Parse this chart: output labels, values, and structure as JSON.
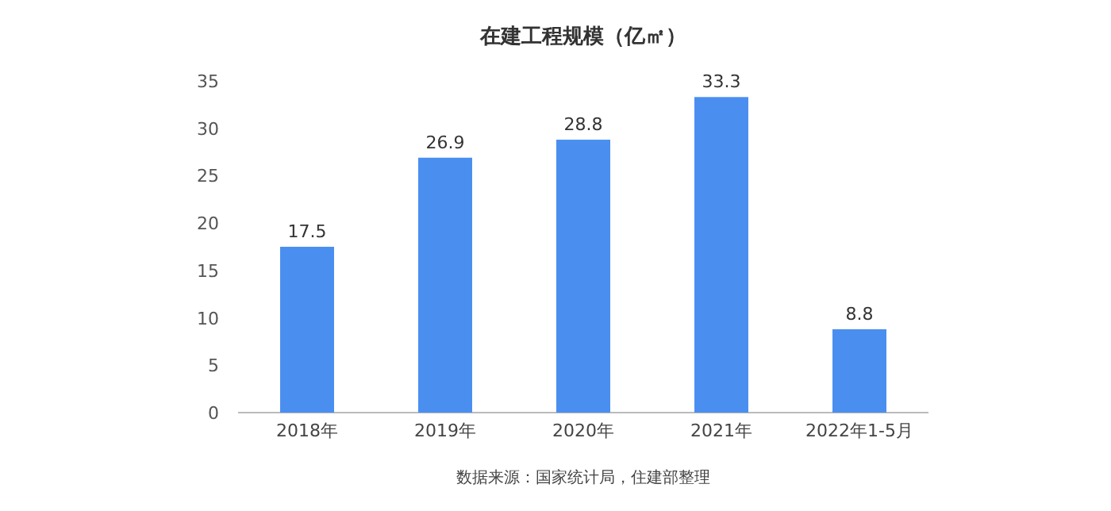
{
  "chart_data": {
    "type": "bar",
    "title": "在建工程规模（亿㎡）",
    "categories": [
      "2018年",
      "2019年",
      "2020年",
      "2021年",
      "2022年1-5月"
    ],
    "values": [
      17.5,
      26.9,
      28.8,
      33.3,
      8.8
    ],
    "color": "#4a8ff0",
    "ylim": [
      0,
      35
    ],
    "yticks": [
      0,
      5,
      10,
      15,
      20,
      25,
      30,
      35
    ],
    "data_labels": true,
    "annotations": [
      "数据来源：国家统计局，住建部整理"
    ]
  }
}
